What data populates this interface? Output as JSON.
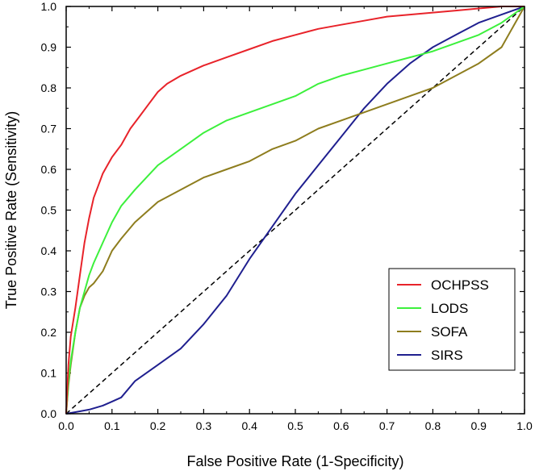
{
  "chart_data": {
    "type": "line",
    "title": "",
    "xlabel": "False Positive Rate (1-Specificity)",
    "ylabel": "True Positive Rate (Sensitivity)",
    "xlim": [
      0,
      1
    ],
    "ylim": [
      0,
      1
    ],
    "xticks": [
      "0.0",
      "0.1",
      "0.2",
      "0.3",
      "0.4",
      "0.5",
      "0.6",
      "0.7",
      "0.8",
      "0.9",
      "1.0"
    ],
    "yticks": [
      "0.0",
      "0.1",
      "0.2",
      "0.3",
      "0.4",
      "0.5",
      "0.6",
      "0.7",
      "0.8",
      "0.9",
      "1.0"
    ],
    "grid": false,
    "legend_position": "bottom-right",
    "reference_line": {
      "style": "dashed",
      "color": "#000000",
      "x": [
        0,
        1
      ],
      "y": [
        0,
        1
      ]
    },
    "series": [
      {
        "name": "OCHPSS",
        "color": "#e8232a",
        "x": [
          0,
          0.005,
          0.01,
          0.02,
          0.03,
          0.04,
          0.05,
          0.06,
          0.07,
          0.08,
          0.1,
          0.12,
          0.14,
          0.16,
          0.18,
          0.2,
          0.22,
          0.25,
          0.3,
          0.35,
          0.4,
          0.45,
          0.5,
          0.55,
          0.6,
          0.65,
          0.7,
          0.75,
          0.8,
          0.85,
          0.9,
          0.95,
          1.0
        ],
        "y": [
          0,
          0.12,
          0.19,
          0.26,
          0.34,
          0.42,
          0.48,
          0.53,
          0.56,
          0.59,
          0.63,
          0.66,
          0.7,
          0.73,
          0.76,
          0.79,
          0.81,
          0.83,
          0.855,
          0.875,
          0.895,
          0.915,
          0.93,
          0.945,
          0.955,
          0.965,
          0.975,
          0.98,
          0.985,
          0.99,
          0.995,
          1.0,
          1.0
        ]
      },
      {
        "name": "LODS",
        "color": "#3cf03c",
        "x": [
          0,
          0.005,
          0.01,
          0.02,
          0.03,
          0.04,
          0.05,
          0.06,
          0.08,
          0.1,
          0.12,
          0.15,
          0.2,
          0.25,
          0.3,
          0.35,
          0.4,
          0.45,
          0.5,
          0.55,
          0.6,
          0.65,
          0.7,
          0.75,
          0.8,
          0.85,
          0.9,
          0.95,
          1.0
        ],
        "y": [
          0,
          0.08,
          0.13,
          0.2,
          0.26,
          0.3,
          0.34,
          0.37,
          0.42,
          0.47,
          0.51,
          0.55,
          0.61,
          0.65,
          0.69,
          0.72,
          0.74,
          0.76,
          0.78,
          0.81,
          0.83,
          0.845,
          0.86,
          0.875,
          0.89,
          0.91,
          0.93,
          0.96,
          1.0
        ]
      },
      {
        "name": "SOFA",
        "color": "#8e7d1e",
        "x": [
          0,
          0.005,
          0.01,
          0.02,
          0.03,
          0.04,
          0.05,
          0.06,
          0.08,
          0.1,
          0.12,
          0.15,
          0.2,
          0.25,
          0.3,
          0.35,
          0.4,
          0.45,
          0.5,
          0.55,
          0.6,
          0.65,
          0.7,
          0.75,
          0.8,
          0.85,
          0.9,
          0.95,
          1.0
        ],
        "y": [
          0,
          0.07,
          0.12,
          0.2,
          0.26,
          0.29,
          0.31,
          0.32,
          0.35,
          0.4,
          0.43,
          0.47,
          0.52,
          0.55,
          0.58,
          0.6,
          0.62,
          0.65,
          0.67,
          0.7,
          0.72,
          0.74,
          0.76,
          0.78,
          0.8,
          0.83,
          0.86,
          0.9,
          1.0
        ]
      },
      {
        "name": "SIRS",
        "color": "#1f1f8f",
        "x": [
          0,
          0.02,
          0.05,
          0.08,
          0.1,
          0.12,
          0.15,
          0.2,
          0.25,
          0.3,
          0.35,
          0.4,
          0.45,
          0.5,
          0.55,
          0.6,
          0.65,
          0.7,
          0.75,
          0.8,
          0.85,
          0.9,
          0.95,
          1.0
        ],
        "y": [
          0,
          0.004,
          0.01,
          0.02,
          0.03,
          0.04,
          0.08,
          0.12,
          0.16,
          0.22,
          0.29,
          0.38,
          0.46,
          0.54,
          0.61,
          0.68,
          0.75,
          0.81,
          0.86,
          0.9,
          0.93,
          0.96,
          0.98,
          1.0
        ]
      }
    ]
  }
}
